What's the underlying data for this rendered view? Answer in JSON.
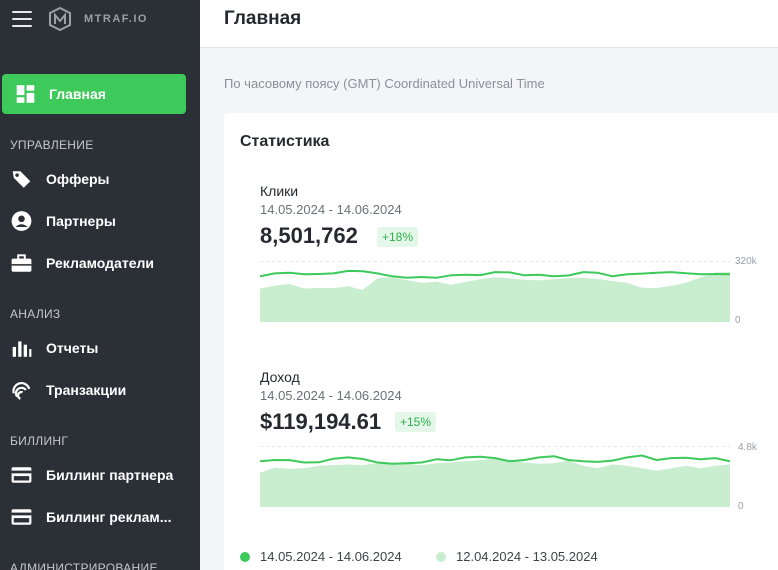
{
  "app": {
    "logo_text": "MTRAF.IO"
  },
  "header": {
    "title": "Главная"
  },
  "timezone_text": "По часовому поясу (GMT) Coordinated Universal Time",
  "sidebar": {
    "active": {
      "label": "Главная",
      "icon": "dashboard-icon"
    },
    "sections": [
      {
        "title": "УПРАВЛЕНИЕ",
        "items": [
          {
            "label": "Офферы",
            "icon": "tag-icon"
          },
          {
            "label": "Партнеры",
            "icon": "user-circle-icon"
          },
          {
            "label": "Рекламодатели",
            "icon": "briefcase-icon"
          }
        ]
      },
      {
        "title": "АНАЛИЗ",
        "items": [
          {
            "label": "Отчеты",
            "icon": "bar-chart-icon"
          },
          {
            "label": "Транзакции",
            "icon": "fingerprint-icon"
          }
        ]
      },
      {
        "title": "БИЛЛИНГ",
        "items": [
          {
            "label": "Биллинг партнера",
            "icon": "credit-card-icon"
          },
          {
            "label": "Биллинг реклам...",
            "icon": "credit-card-icon"
          }
        ]
      },
      {
        "title": "АДМИНИСТРИРОВАНИЕ",
        "items": []
      }
    ]
  },
  "stats": {
    "title": "Статистика",
    "clicks": {
      "label": "Клики",
      "range": "14.05.2024 - 14.06.2024",
      "value": "8,501,762",
      "change": "+18%",
      "axis_max": "320k",
      "axis_min": "0"
    },
    "revenue": {
      "label": "Доход",
      "range": "14.05.2024 - 14.06.2024",
      "value": "$119,194.61",
      "change": "+15%",
      "axis_max": "4.8k",
      "axis_min": "0"
    },
    "legend": [
      {
        "label": "14.05.2024 - 14.06.2024",
        "color": "#3ec95b"
      },
      {
        "label": "12.04.2024 - 13.05.2024",
        "color": "#c8eecf"
      }
    ]
  },
  "chart_data": [
    {
      "type": "line",
      "title": "Клики",
      "ylim": [
        0,
        320000
      ],
      "series": [
        {
          "name": "14.05.2024 - 14.06.2024",
          "values": [
            240000,
            255000,
            258000,
            250000,
            252000,
            255000,
            268000,
            266000,
            255000,
            240000,
            232000,
            236000,
            232000,
            245000,
            248000,
            246000,
            262000,
            260000,
            245000,
            248000,
            240000,
            244000,
            262000,
            258000,
            240000,
            250000,
            254000,
            258000,
            262000,
            256000,
            250000,
            252000,
            250000
          ]
        },
        {
          "name": "12.04.2024 - 13.05.2024",
          "values": [
            175000,
            190000,
            200000,
            175000,
            180000,
            178000,
            188000,
            168000,
            230000,
            235000,
            220000,
            205000,
            212000,
            195000,
            210000,
            225000,
            235000,
            230000,
            222000,
            218000,
            225000,
            230000,
            232000,
            225000,
            215000,
            205000,
            180000,
            178000,
            190000,
            205000,
            235000,
            260000,
            262000
          ]
        }
      ]
    },
    {
      "type": "line",
      "title": "Доход",
      "ylim": [
        0,
        4800
      ],
      "series": [
        {
          "name": "14.05.2024 - 14.06.2024",
          "values": [
            3600,
            3700,
            3690,
            3500,
            3520,
            3800,
            3900,
            3780,
            3500,
            3400,
            3450,
            3500,
            3750,
            3680,
            3900,
            3950,
            3850,
            3600,
            3700,
            3900,
            4000,
            3700,
            3600,
            3550,
            3650,
            3900,
            4050,
            3700,
            3850,
            3880,
            3750,
            3850,
            3600
          ]
        },
        {
          "name": "12.04.2024 - 13.05.2024",
          "values": [
            2700,
            3100,
            3000,
            3050,
            3250,
            3300,
            3350,
            3300,
            3450,
            3500,
            3400,
            3300,
            3450,
            3500,
            3600,
            3700,
            3800,
            3700,
            3500,
            3400,
            3450,
            3650,
            3250,
            3050,
            3350,
            3250,
            3050,
            2850,
            3050,
            3250,
            3050,
            3250,
            3350
          ]
        }
      ]
    }
  ]
}
